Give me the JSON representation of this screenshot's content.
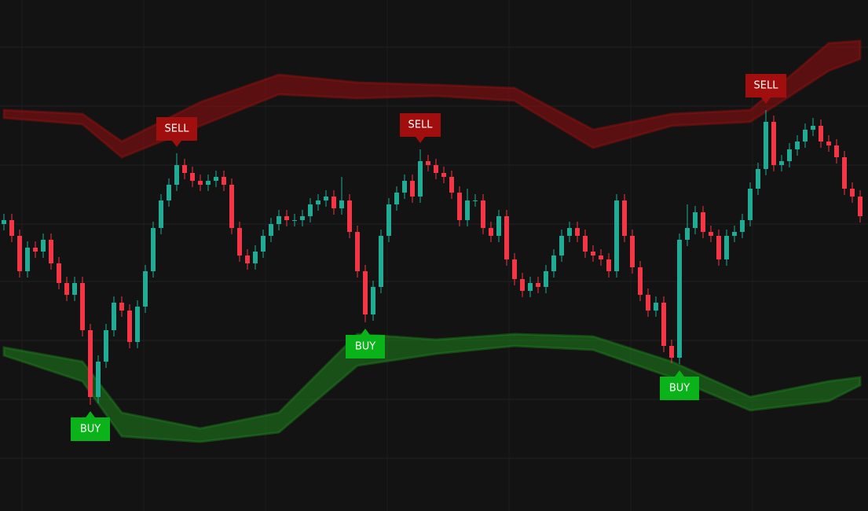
{
  "chart_data": {
    "type": "candlestick",
    "ylim": [
      0,
      650
    ],
    "up_color": "#22ab94",
    "down_color": "#f23645",
    "open": [
      365,
      370,
      350,
      305,
      335,
      330,
      345,
      315,
      290,
      275,
      290,
      230,
      145,
      190,
      230,
      265,
      255,
      215,
      260,
      305,
      360,
      395,
      415,
      440,
      430,
      420,
      415,
      420,
      425,
      415,
      360,
      325,
      315,
      330,
      350,
      365,
      375,
      370,
      370,
      375,
      390,
      395,
      400,
      385,
      395,
      355,
      305,
      250,
      285,
      350,
      390,
      405,
      420,
      400,
      445,
      440,
      430,
      425,
      405,
      370,
      395,
      395,
      360,
      350,
      375,
      320,
      295,
      280,
      290,
      285,
      305,
      325,
      350,
      360,
      350,
      330,
      325,
      320,
      305,
      395,
      350,
      310,
      275,
      255,
      265,
      210,
      195,
      345,
      360,
      380,
      355,
      350,
      320,
      350,
      355,
      370,
      410,
      435,
      495,
      440,
      445,
      460,
      470,
      485,
      490,
      470,
      465,
      450,
      410,
      400
    ],
    "high": [
      378,
      378,
      358,
      343,
      343,
      353,
      353,
      323,
      298,
      298,
      298,
      238,
      198,
      238,
      273,
      273,
      263,
      268,
      313,
      368,
      403,
      423,
      455,
      448,
      438,
      428,
      428,
      433,
      433,
      423,
      368,
      333,
      338,
      358,
      373,
      383,
      383,
      378,
      383,
      398,
      403,
      408,
      408,
      425,
      403,
      363,
      313,
      293,
      358,
      398,
      413,
      428,
      428,
      460,
      453,
      448,
      438,
      433,
      413,
      410,
      403,
      403,
      368,
      383,
      383,
      328,
      303,
      298,
      298,
      313,
      333,
      358,
      368,
      368,
      358,
      338,
      333,
      328,
      403,
      403,
      358,
      318,
      283,
      273,
      273,
      218,
      353,
      390,
      388,
      388,
      363,
      358,
      358,
      363,
      378,
      418,
      443,
      510,
      503,
      453,
      468,
      478,
      493,
      500,
      498,
      478,
      473,
      458,
      418,
      408
    ],
    "low": [
      357,
      342,
      297,
      297,
      322,
      322,
      307,
      282,
      267,
      267,
      222,
      135,
      137,
      182,
      222,
      247,
      207,
      207,
      252,
      297,
      352,
      387,
      407,
      422,
      412,
      407,
      407,
      412,
      407,
      352,
      317,
      307,
      307,
      322,
      342,
      357,
      362,
      362,
      362,
      367,
      382,
      387,
      377,
      377,
      347,
      297,
      240,
      242,
      277,
      342,
      382,
      397,
      392,
      392,
      432,
      422,
      417,
      397,
      362,
      362,
      387,
      352,
      342,
      342,
      312,
      287,
      272,
      272,
      277,
      277,
      297,
      317,
      342,
      342,
      322,
      317,
      312,
      297,
      297,
      342,
      302,
      267,
      247,
      247,
      202,
      188,
      187,
      337,
      352,
      347,
      342,
      312,
      312,
      342,
      347,
      362,
      402,
      427,
      432,
      432,
      437,
      452,
      462,
      477,
      462,
      457,
      442,
      402,
      392,
      367
    ],
    "close": [
      370,
      350,
      305,
      335,
      330,
      345,
      315,
      290,
      275,
      290,
      230,
      145,
      190,
      230,
      265,
      255,
      215,
      260,
      305,
      360,
      395,
      415,
      440,
      430,
      420,
      415,
      420,
      425,
      415,
      360,
      325,
      315,
      330,
      350,
      365,
      375,
      370,
      370,
      375,
      390,
      395,
      400,
      385,
      395,
      355,
      305,
      250,
      285,
      350,
      390,
      405,
      420,
      400,
      445,
      440,
      430,
      425,
      405,
      370,
      395,
      395,
      360,
      350,
      375,
      320,
      295,
      280,
      290,
      285,
      305,
      325,
      350,
      360,
      350,
      330,
      325,
      320,
      305,
      395,
      350,
      310,
      275,
      255,
      265,
      210,
      195,
      345,
      360,
      380,
      355,
      350,
      320,
      350,
      355,
      370,
      410,
      435,
      495,
      440,
      445,
      460,
      470,
      485,
      490,
      470,
      465,
      450,
      410,
      400,
      375
    ],
    "band_x": [
      0,
      10,
      15,
      25,
      35,
      45,
      55,
      65,
      75,
      85,
      95,
      105,
      109
    ],
    "bands": [
      {
        "color": "#8b0f0f",
        "upper": [
          510,
          505,
          470,
          520,
          555,
          545,
          542,
          538,
          485,
          505,
          510,
          595,
          598
        ],
        "lower": [
          500,
          492,
          450,
          490,
          530,
          525,
          528,
          522,
          462,
          490,
          495,
          560,
          575
        ]
      },
      {
        "color": "#1d7a1d",
        "upper": [
          208,
          190,
          125,
          105,
          125,
          225,
          218,
          225,
          222,
          190,
          145,
          165,
          170
        ],
        "lower": [
          198,
          165,
          95,
          88,
          100,
          185,
          200,
          210,
          205,
          170,
          128,
          140,
          160
        ]
      }
    ],
    "signals": [
      {
        "text": "BUY",
        "kind": "buy",
        "candle": 11
      },
      {
        "text": "SELL",
        "kind": "sell",
        "candle": 22
      },
      {
        "text": "BUY",
        "kind": "buy",
        "candle": 46
      },
      {
        "text": "SELL",
        "kind": "sell",
        "candle": 53
      },
      {
        "text": "BUY",
        "kind": "buy",
        "candle": 86
      },
      {
        "text": "SELL",
        "kind": "sell",
        "candle": 97
      }
    ],
    "buy_color": "#0bb31a",
    "sell_color": "#a10e0e"
  }
}
